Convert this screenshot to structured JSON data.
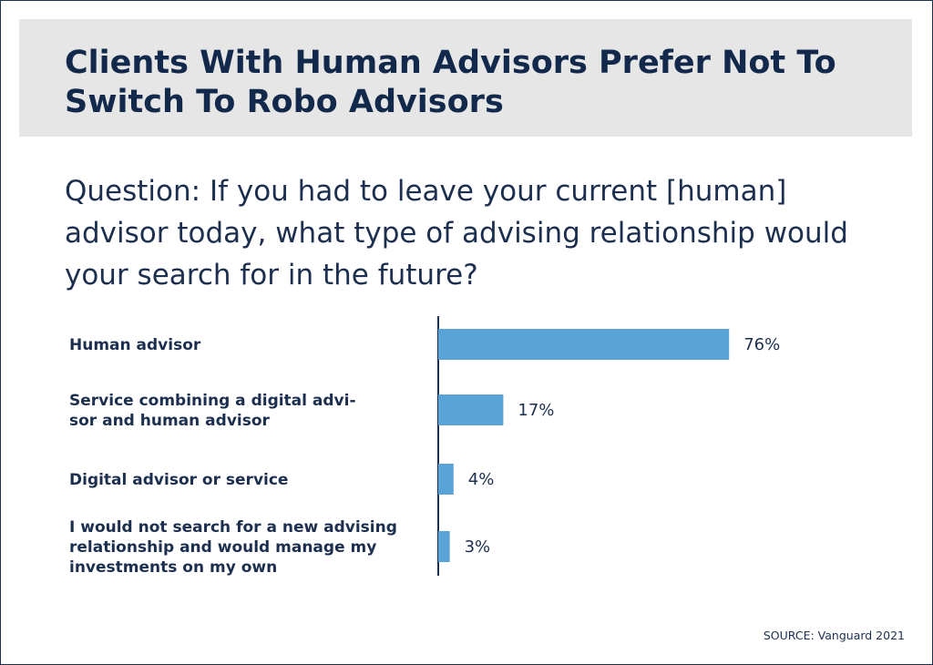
{
  "title": "Clients With Human Advisors Prefer Not To Switch To Robo Advisors",
  "question": "Question: If you had to leave your current [human] advisor today, what type of advising relationship would your search for in the future?",
  "source": "SOURCE: Vanguard 2021",
  "colors": {
    "bar": "#5aa3d6",
    "text": "#1c2f4f",
    "band": "#e6e6e6"
  },
  "chart_data": {
    "type": "bar",
    "orientation": "horizontal",
    "categories": [
      [
        "Human advisor"
      ],
      [
        "Service combining a digital advi-",
        "sor and human advisor"
      ],
      [
        "Digital advisor or service"
      ],
      [
        "I would not search for a new advising",
        "relationship and would manage my",
        "investments on my own"
      ]
    ],
    "values": [
      76,
      17,
      4,
      3
    ],
    "value_labels": [
      "76%",
      "17%",
      "4%",
      "3%"
    ],
    "unit": "%",
    "xlim": [
      0,
      100
    ]
  }
}
